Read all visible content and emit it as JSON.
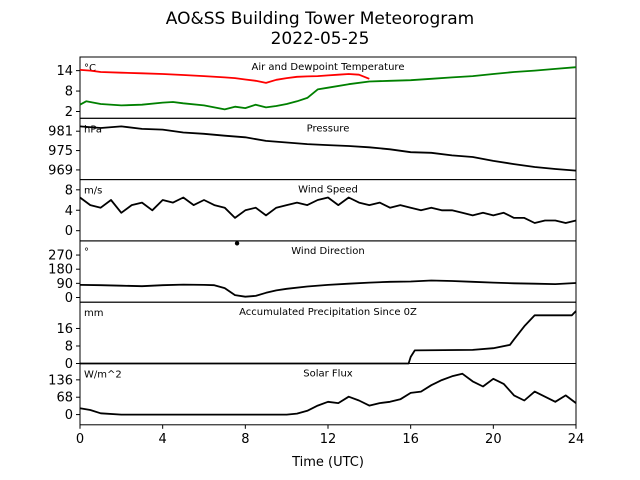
{
  "title": "AO&SS Building Tower Meteorogram",
  "subtitle": "2022-05-25",
  "chart_data": [
    {
      "type": "line",
      "title": "Air and Dewpoint Temperature",
      "unit_label": "°C",
      "yticks": [
        "2",
        "8",
        "14"
      ],
      "ylim": [
        0,
        18
      ],
      "series": [
        {
          "color": "#ff0000",
          "x": [
            0,
            0.5,
            1,
            2,
            3,
            4,
            5,
            6,
            7,
            7.5,
            8,
            8.5,
            9,
            9.5,
            10,
            10.5,
            11,
            11.5,
            12,
            12.5,
            13,
            13.5,
            14
          ],
          "y": [
            14.2,
            14.0,
            13.6,
            13.4,
            13.2,
            13.0,
            12.7,
            12.4,
            12.0,
            11.8,
            11.4,
            11.0,
            10.4,
            11.3,
            11.8,
            12.2,
            12.3,
            12.4,
            12.6,
            12.8,
            13.0,
            12.8,
            11.6
          ]
        },
        {
          "color": "#008000",
          "x": [
            0,
            0.3,
            1,
            2,
            3,
            4,
            4.5,
            5,
            6,
            7,
            7.5,
            8,
            8.5,
            9,
            9.5,
            10,
            10.5,
            11,
            11.5,
            12,
            13,
            14,
            15,
            16,
            17,
            18,
            19,
            20,
            21,
            22,
            23,
            24
          ],
          "y": [
            4.0,
            5.0,
            4.2,
            3.8,
            4.0,
            4.6,
            4.8,
            4.4,
            3.8,
            2.6,
            3.4,
            3.0,
            4.0,
            3.2,
            3.6,
            4.2,
            5.0,
            6.0,
            8.5,
            9.0,
            10.0,
            10.8,
            11.0,
            11.2,
            11.6,
            12.0,
            12.4,
            13.0,
            13.6,
            14.0,
            14.5,
            15.0
          ]
        }
      ]
    },
    {
      "type": "line",
      "title": "Pressure",
      "unit_label": "hPa",
      "yticks": [
        "969",
        "975",
        "981"
      ],
      "ylim": [
        966,
        985
      ],
      "series": [
        {
          "color": "#000000",
          "x": [
            0,
            1,
            2,
            3,
            4,
            5,
            6,
            7,
            8,
            9,
            10,
            11,
            12,
            13,
            14,
            15,
            16,
            17,
            18,
            19,
            20,
            21,
            22,
            23,
            24
          ],
          "y": [
            982.5,
            982.0,
            982.5,
            981.7,
            981.5,
            980.6,
            980.2,
            979.6,
            979.1,
            978.0,
            977.5,
            977.0,
            976.7,
            976.4,
            976.0,
            975.4,
            974.5,
            974.3,
            973.5,
            973.0,
            971.8,
            970.8,
            969.9,
            969.3,
            968.8
          ]
        }
      ]
    },
    {
      "type": "line",
      "title": "Wind Speed",
      "unit_label": "m/s",
      "yticks": [
        "0",
        "4",
        "8"
      ],
      "ylim": [
        -2,
        10
      ],
      "series": [
        {
          "color": "#000000",
          "x": [
            0,
            0.5,
            1,
            1.5,
            2,
            2.5,
            3,
            3.5,
            4,
            4.5,
            5,
            5.5,
            6,
            6.5,
            7,
            7.5,
            8,
            8.5,
            9,
            9.5,
            10,
            10.5,
            11,
            11.5,
            12,
            12.5,
            13,
            13.5,
            14,
            14.5,
            15,
            15.5,
            16,
            16.5,
            17,
            17.5,
            18,
            18.5,
            19,
            19.5,
            20,
            20.5,
            21,
            21.5,
            22,
            22.5,
            23,
            23.5,
            24
          ],
          "y": [
            6.5,
            5.0,
            4.5,
            6.0,
            3.5,
            5.0,
            5.5,
            4.0,
            6.0,
            5.5,
            6.5,
            5.0,
            6.0,
            5.0,
            4.5,
            2.5,
            4.0,
            4.5,
            3.0,
            4.5,
            5.0,
            5.5,
            5.0,
            6.0,
            6.5,
            5.0,
            6.5,
            5.5,
            5.0,
            5.5,
            4.5,
            5.0,
            4.5,
            4.0,
            4.5,
            4.0,
            4.0,
            3.5,
            3.0,
            3.5,
            3.0,
            3.5,
            2.5,
            2.5,
            1.5,
            2.0,
            2.0,
            1.5,
            2.0
          ]
        }
      ]
    },
    {
      "type": "line",
      "title": "Wind Direction",
      "unit_label": "°",
      "yticks": [
        "0",
        "90",
        "180",
        "270"
      ],
      "ylim": [
        -30,
        360
      ],
      "series": [
        {
          "color": "#000000",
          "x": [
            0,
            1,
            2,
            3,
            4,
            5,
            6,
            6.5,
            7,
            7.5,
            8,
            8.5,
            9,
            9.5,
            10,
            11,
            12,
            13,
            14,
            15,
            16,
            17,
            18,
            19,
            20,
            21,
            22,
            23,
            24
          ],
          "y": [
            80,
            78,
            75,
            72,
            78,
            82,
            80,
            78,
            60,
            15,
            5,
            10,
            30,
            45,
            55,
            70,
            80,
            88,
            95,
            100,
            102,
            108,
            105,
            100,
            95,
            90,
            88,
            85,
            92
          ]
        },
        {
          "color": "#000000",
          "x": [
            7.6
          ],
          "y": [
            345
          ],
          "marker": "dot"
        }
      ]
    },
    {
      "type": "line",
      "title": "Accumulated Precipitation Since 0Z",
      "unit_label": "mm",
      "yticks": [
        "0",
        "8",
        "16"
      ],
      "ylim": [
        0,
        28
      ],
      "series": [
        {
          "color": "#000000",
          "x": [
            0,
            15.9,
            16.0,
            16.2,
            19.0,
            20.0,
            20.8,
            21.0,
            21.5,
            22.0,
            23.8,
            24.0
          ],
          "y": [
            0,
            0,
            3.0,
            6.0,
            6.2,
            7.0,
            8.5,
            11.0,
            17.0,
            22.0,
            22.0,
            24.0
          ]
        }
      ]
    },
    {
      "type": "line",
      "title": "Solar Flux",
      "unit_label": "W/m^2",
      "yticks": [
        "0",
        "68",
        "136"
      ],
      "ylim": [
        -40,
        200
      ],
      "series": [
        {
          "color": "#000000",
          "x": [
            0,
            0.5,
            1,
            2,
            4,
            6,
            8,
            10,
            10.5,
            11,
            11.5,
            12,
            12.5,
            13,
            13.5,
            14,
            14.5,
            15,
            15.5,
            16,
            16.5,
            17,
            17.5,
            18,
            18.5,
            19,
            19.5,
            20,
            20.5,
            21,
            21.5,
            22,
            22.5,
            23,
            23.5,
            24
          ],
          "y": [
            25,
            18,
            5,
            0,
            0,
            0,
            0,
            0,
            4,
            15,
            35,
            50,
            45,
            70,
            55,
            35,
            45,
            50,
            60,
            85,
            90,
            115,
            135,
            150,
            160,
            130,
            110,
            140,
            120,
            75,
            55,
            90,
            70,
            50,
            75,
            45
          ]
        }
      ]
    }
  ],
  "xaxis": {
    "label": "Time (UTC)",
    "range": [
      0,
      24
    ],
    "ticks": [
      "0",
      "4",
      "8",
      "12",
      "16",
      "20",
      "24"
    ]
  }
}
